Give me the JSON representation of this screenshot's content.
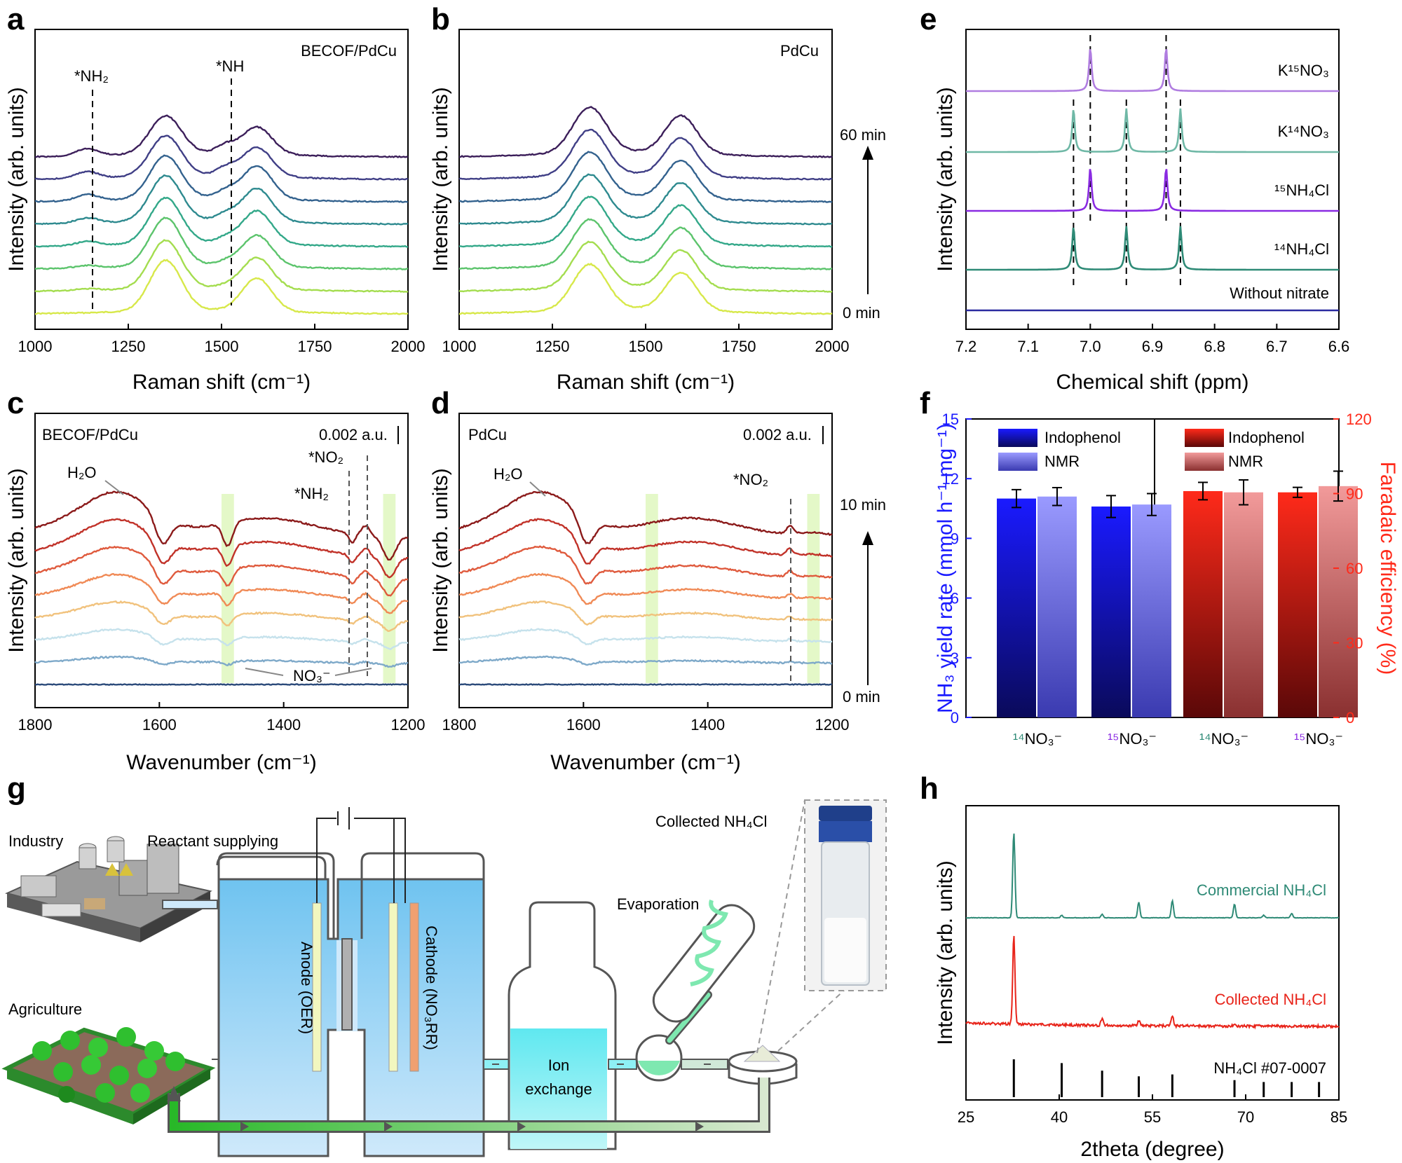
{
  "figure": {
    "panel_letters": [
      "a",
      "b",
      "c",
      "d",
      "e",
      "f",
      "g",
      "h"
    ]
  },
  "chart_data": [
    {
      "panel": "a",
      "type": "line",
      "panel_label": "BECOF/PdCu",
      "xlabel": "Raman shift (cm⁻¹)",
      "ylabel": "Intensity (arb. units)",
      "xlim": [
        1000,
        2000
      ],
      "xticks": [
        "1000",
        "1250",
        "1500",
        "1750",
        "2000"
      ],
      "annotations": [
        {
          "text": "*NH₂",
          "x": 1140
        },
        {
          "text": "*NH",
          "x": 1510
        }
      ],
      "series": [
        {
          "color": "#d7e84a",
          "peaks": [
            1350,
            1590
          ],
          "heights": [
            1.0,
            0.85
          ],
          "shoulder_1510": 0.0,
          "nh2": 0.0
        },
        {
          "color": "#a4dd4f",
          "peaks": [
            1350,
            1590
          ],
          "heights": [
            0.95,
            0.8
          ],
          "shoulder_1510": 0.15,
          "nh2": 0.03
        },
        {
          "color": "#5cc46c",
          "peaks": [
            1350,
            1590
          ],
          "heights": [
            0.95,
            0.8
          ],
          "shoulder_1510": 0.25,
          "nh2": 0.05
        },
        {
          "color": "#33a889",
          "peaks": [
            1350,
            1590
          ],
          "heights": [
            0.9,
            0.85
          ],
          "shoulder_1510": 0.35,
          "nh2": 0.08
        },
        {
          "color": "#2e8a8f",
          "peaks": [
            1350,
            1590
          ],
          "heights": [
            0.9,
            0.85
          ],
          "shoulder_1510": 0.45,
          "nh2": 0.1
        },
        {
          "color": "#33628e",
          "peaks": [
            1350,
            1590
          ],
          "heights": [
            0.85,
            0.85
          ],
          "shoulder_1510": 0.5,
          "nh2": 0.12
        },
        {
          "color": "#403f86",
          "peaks": [
            1350,
            1590
          ],
          "heights": [
            0.8,
            0.75
          ],
          "shoulder_1510": 0.55,
          "nh2": 0.13
        },
        {
          "color": "#3c1f5a",
          "peaks": [
            1350,
            1590
          ],
          "heights": [
            0.75,
            0.7
          ],
          "shoulder_1510": 0.55,
          "nh2": 0.14
        }
      ]
    },
    {
      "panel": "b",
      "type": "line",
      "panel_label": "PdCu",
      "xlabel": "Raman shift (cm⁻¹)",
      "ylabel": "Intensity (arb. units)",
      "xlim": [
        1000,
        2000
      ],
      "xticks": [
        "1000",
        "1250",
        "1500",
        "1750",
        "2000"
      ],
      "time_start": "0 min",
      "time_end": "60 min",
      "series": [
        {
          "color": "#d7e84a"
        },
        {
          "color": "#a4dd4f"
        },
        {
          "color": "#5cc46c"
        },
        {
          "color": "#33a889"
        },
        {
          "color": "#2e8a8f"
        },
        {
          "color": "#33628e"
        },
        {
          "color": "#403f86"
        },
        {
          "color": "#3c1f5a"
        }
      ]
    },
    {
      "panel": "c",
      "type": "line",
      "panel_label": "BECOF/PdCu",
      "scale_bar": "0.002 a.u.",
      "xlabel": "Wavenumber (cm⁻¹)",
      "ylabel": "Intensity (arb. units)",
      "xlim": [
        1800,
        1200
      ],
      "xticks": [
        "1800",
        "1600",
        "1400",
        "1200"
      ],
      "annotations": [
        {
          "text": "H₂O",
          "x": 1665
        },
        {
          "text": "*NO₂",
          "x": 1265
        },
        {
          "text": "*NH₂",
          "x": 1290
        },
        {
          "text": "NO₃⁻",
          "x": 1370
        }
      ],
      "highlight_bands": [
        [
          1500,
          1480
        ],
        [
          1240,
          1220
        ]
      ],
      "series": [
        {
          "color": "#2b4a7a"
        },
        {
          "color": "#7ea9c9"
        },
        {
          "color": "#c6e2ec"
        },
        {
          "color": "#f1c27d"
        },
        {
          "color": "#f08a56"
        },
        {
          "color": "#df5a3d"
        },
        {
          "color": "#c13229"
        },
        {
          "color": "#8b1a1a"
        }
      ]
    },
    {
      "panel": "d",
      "type": "line",
      "panel_label": "PdCu",
      "scale_bar": "0.002 a.u.",
      "xlabel": "Wavenumber (cm⁻¹)",
      "ylabel": "Intensity (arb. units)",
      "xlim": [
        1800,
        1200
      ],
      "xticks": [
        "1800",
        "1600",
        "1400",
        "1200"
      ],
      "time_start": "0 min",
      "time_end": "10 min",
      "annotations": [
        {
          "text": "H₂O",
          "x": 1665
        },
        {
          "text": "*NO₂",
          "x": 1270
        }
      ],
      "highlight_bands": [
        [
          1500,
          1480
        ],
        [
          1240,
          1220
        ]
      ],
      "series": [
        {
          "color": "#2b4a7a"
        },
        {
          "color": "#7ea9c9"
        },
        {
          "color": "#c6e2ec"
        },
        {
          "color": "#f1c27d"
        },
        {
          "color": "#f08a56"
        },
        {
          "color": "#df5a3d"
        },
        {
          "color": "#c13229"
        },
        {
          "color": "#8b1a1a"
        }
      ]
    },
    {
      "panel": "e",
      "type": "line",
      "xlabel": "Chemical shift (ppm)",
      "ylabel": "Intensity (arb. units)",
      "xlim": [
        7.2,
        6.6
      ],
      "xticks": [
        "7.2",
        "7.1",
        "7.0",
        "6.9",
        "6.8",
        "6.7",
        "6.6"
      ],
      "dashed_lines": [
        7.027,
        7.0,
        6.942,
        6.878,
        6.855
      ],
      "series": [
        {
          "name": "Without nitrate",
          "color": "#2a2aa0",
          "peaks": []
        },
        {
          "name": "¹⁴NH₄Cl",
          "color": "#2e8a76",
          "peaks": [
            7.027,
            6.942,
            6.855
          ]
        },
        {
          "name": "¹⁵NH₄Cl",
          "color": "#8a2be2",
          "peaks": [
            7.0,
            6.878
          ]
        },
        {
          "name": "K¹⁴NO₃",
          "color": "#6fb8a6",
          "peaks": [
            7.027,
            6.942,
            6.855
          ]
        },
        {
          "name": "K¹⁵NO₃",
          "color": "#b07de0",
          "peaks": [
            7.0,
            6.878
          ]
        }
      ]
    },
    {
      "panel": "f",
      "type": "bar",
      "ylabel_left": "NH₃ yield rate (mmol h⁻¹ mg⁻¹)",
      "ylabel_right": "Faradaic efficiency (%)",
      "ylim_left": [
        0,
        15
      ],
      "yticks_left": [
        "0",
        "3",
        "6",
        "9",
        "12",
        "15"
      ],
      "ylim_right": [
        0,
        120
      ],
      "yticks_right": [
        "0",
        "30",
        "60",
        "90",
        "120"
      ],
      "categories": [
        "¹⁴NO₃⁻",
        "¹⁵NO₃⁻",
        "¹⁴NO₃⁻",
        "¹⁵NO₃⁻"
      ],
      "legend_left": [
        "Indophenol",
        "NMR"
      ],
      "legend_right": [
        "Indophenol",
        "NMR"
      ],
      "yield_series": [
        {
          "name": "Indophenol",
          "values": [
            11.0,
            10.6
          ],
          "errors": [
            0.45,
            0.55
          ]
        },
        {
          "name": "NMR",
          "values": [
            11.1,
            10.7
          ],
          "errors": [
            0.45,
            0.55
          ]
        }
      ],
      "fe_series": [
        {
          "name": "Indophenol",
          "values": [
            91,
            90.5
          ],
          "errors": [
            3.5,
            2
          ]
        },
        {
          "name": "NMR",
          "values": [
            90.5,
            93
          ],
          "errors": [
            5,
            6
          ]
        }
      ],
      "colors": {
        "blue": "#1a1aff",
        "blue_light": "#8c8cff",
        "red": "#ff2a1a",
        "red_light": "#f08a8a"
      }
    },
    {
      "panel": "h",
      "type": "line",
      "xlabel": "2theta (degree)",
      "ylabel": "Intensity (arb. units)",
      "xlim": [
        25,
        85
      ],
      "xticks": [
        "25",
        "40",
        "55",
        "70",
        "85"
      ],
      "series": [
        {
          "name": "Commercial NH₄Cl",
          "color": "#2e8a76"
        },
        {
          "name": "Collected NH₄Cl",
          "color": "#e8241a"
        }
      ],
      "reference": {
        "name": "NH₄Cl #07-0007",
        "positions": [
          32.7,
          40.4,
          46.9,
          52.8,
          58.2,
          68.2,
          72.9,
          77.4,
          81.8
        ],
        "heights": [
          1,
          0.9,
          0.7,
          0.55,
          0.6,
          0.45,
          0.4,
          0.4,
          0.4
        ]
      }
    }
  ],
  "diagram_g": {
    "industry": "Industry",
    "reactant": "Reactant supplying",
    "agriculture": "Agriculture",
    "anode": "Anode (OER)",
    "cathode": "Cathode (NO₃RR)",
    "ion1": "Ion",
    "ion2": "exchange",
    "evaporation": "Evaporation",
    "collected": "Collected NH₄Cl"
  }
}
